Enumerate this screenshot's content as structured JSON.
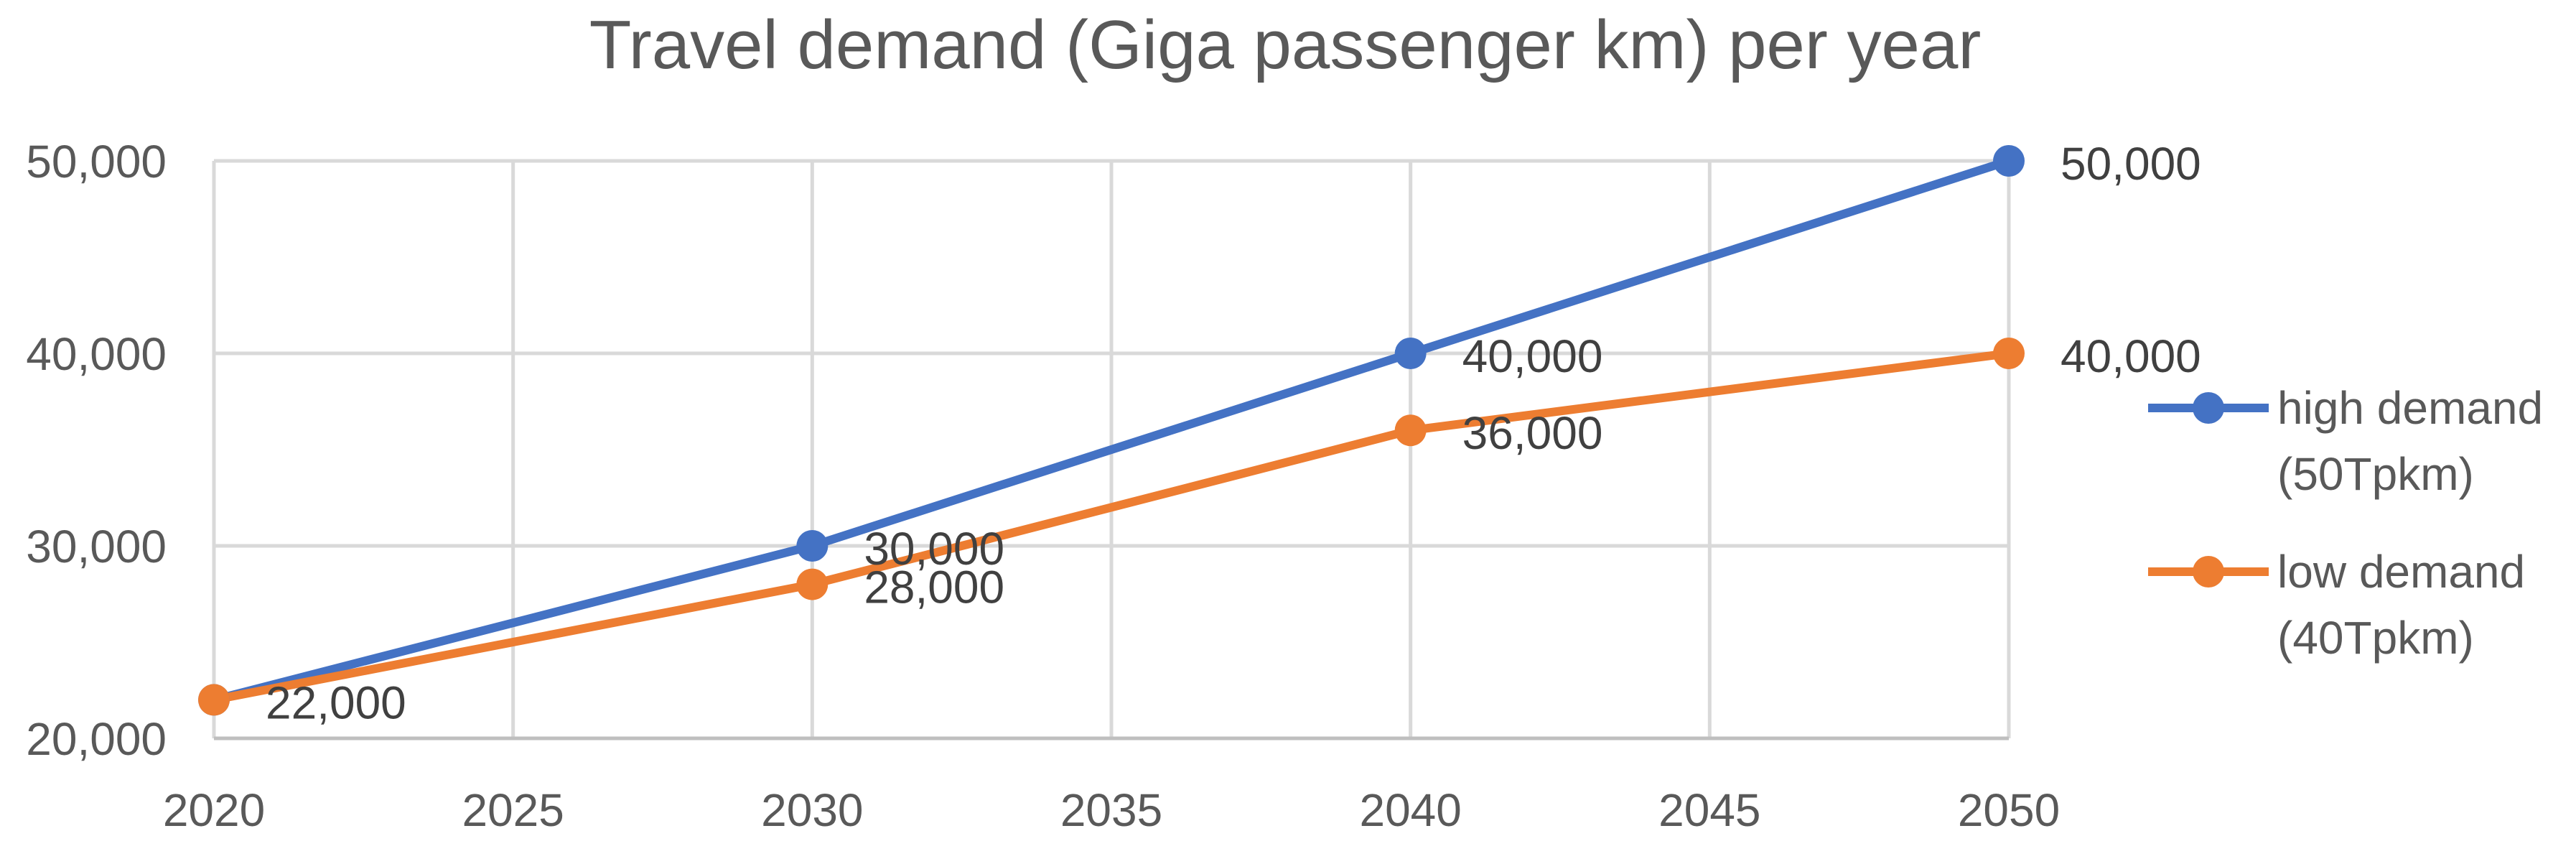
{
  "chart_data": {
    "type": "line",
    "title": "Travel demand (Giga passenger km) per year",
    "xlabel": "",
    "ylabel": "",
    "xlim": [
      2020,
      2050
    ],
    "ylim": [
      20000,
      50000
    ],
    "x_ticks": [
      2020,
      2025,
      2030,
      2035,
      2040,
      2045,
      2050
    ],
    "y_ticks": [
      20000,
      30000,
      40000,
      50000
    ],
    "x_tick_labels": [
      "2020",
      "2025",
      "2030",
      "2035",
      "2040",
      "2045",
      "2050"
    ],
    "y_tick_labels": [
      "20,000",
      "30,000",
      "40,000",
      "50,000"
    ],
    "grid": true,
    "legend_position": "right",
    "series": [
      {
        "name": "high demand (50Tpkm)",
        "legend_lines": [
          "high demand",
          "(50Tpkm)"
        ],
        "color": "#4472C4",
        "x": [
          2020,
          2030,
          2040,
          2050
        ],
        "values": [
          22000,
          30000,
          40000,
          50000
        ],
        "labels": [
          "",
          "30,000",
          "40,000",
          "50,000"
        ]
      },
      {
        "name": "low demand (40Tpkm)",
        "legend_lines": [
          "low demand",
          "(40Tpkm)"
        ],
        "color": "#ED7D31",
        "x": [
          2020,
          2030,
          2040,
          2050
        ],
        "values": [
          22000,
          28000,
          36000,
          40000
        ],
        "labels": [
          "22,000",
          "28,000",
          "36,000",
          "40,000"
        ]
      }
    ]
  }
}
